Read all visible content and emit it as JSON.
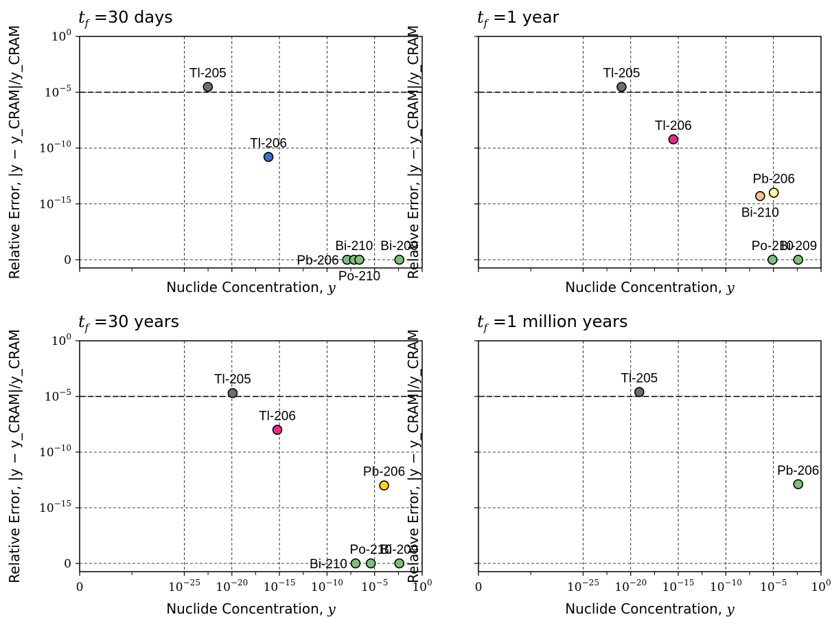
{
  "chart_data": [
    {
      "type": "scatter",
      "title": "t_f =30 days",
      "title_prefix": "t",
      "title_sub": "f",
      "title_text": " =30 days",
      "xlabel": "Nuclide Concentration, y",
      "ylabel": "Relative Error, |y − y_CRAM|/y_CRAM",
      "x_scale": "symlog",
      "xlim": [
        0,
        1
      ],
      "x_ticks": [
        "0",
        "10^-25",
        "10^-20",
        "10^-15",
        "10^-10",
        "10^-5",
        "10^0"
      ],
      "x_ticklabels_shown": false,
      "y_scale": "symlog",
      "y_ticks": [
        "0",
        "10^-15",
        "10^-10",
        "10^-5",
        "10^0"
      ],
      "y_ticklabels_shown": true,
      "threshold": 1e-05,
      "grid": true,
      "points": [
        {
          "label": "Tl-205",
          "x": 3e-23,
          "y": 3e-05,
          "color": "#6e6e6e",
          "label_side": "above"
        },
        {
          "label": "Tl-206",
          "x": 7e-17,
          "y": 1.6e-11,
          "color": "#3a6fc4",
          "label_side": "above"
        },
        {
          "label": "Pb-206",
          "x": 1.3e-08,
          "y": 0,
          "color": "#7fbf7b",
          "label_side": "left"
        },
        {
          "label": "Bi-210",
          "x": 7e-08,
          "y": 0,
          "color": "#7fbf7b",
          "label_side": "above"
        },
        {
          "label": "Po-210",
          "x": 2.5e-07,
          "y": 0,
          "color": "#7fbf7b",
          "label_side": "below"
        },
        {
          "label": "Bi-209",
          "x": 0.004,
          "y": 0,
          "color": "#7fbf7b",
          "label_side": "above"
        }
      ]
    },
    {
      "type": "scatter",
      "title": "t_f =1 year",
      "title_prefix": "t",
      "title_sub": "f",
      "title_text": " =1 year",
      "xlabel": "Nuclide Concentration, y",
      "ylabel": "Relative Error, |y − y_CRAM|/y_CRAM",
      "x_scale": "symlog",
      "xlim": [
        0,
        1
      ],
      "x_ticks": [
        "0",
        "10^-25",
        "10^-20",
        "10^-15",
        "10^-10",
        "10^-5",
        "10^0"
      ],
      "x_ticklabels_shown": false,
      "y_scale": "symlog",
      "y_ticks": [
        "0",
        "10^-15",
        "10^-10",
        "10^-5",
        "10^0"
      ],
      "y_ticklabels_shown": false,
      "threshold": 1e-05,
      "grid": true,
      "points": [
        {
          "label": "Tl-205",
          "x": 1.1e-21,
          "y": 3e-05,
          "color": "#6e6e6e",
          "label_side": "above"
        },
        {
          "label": "Tl-206",
          "x": 3e-16,
          "y": 6e-10,
          "color": "#e7298a",
          "label_side": "above"
        },
        {
          "label": "Bi-210",
          "x": 4e-07,
          "y": 5e-15,
          "color": "#fdc086",
          "label_side": "below"
        },
        {
          "label": "Pb-206",
          "x": 1.1e-05,
          "y": 1e-14,
          "color": "#ffff99",
          "label_side": "above"
        },
        {
          "label": "Po-210",
          "x": 8e-06,
          "y": 0,
          "color": "#7fbf7b",
          "label_side": "above"
        },
        {
          "label": "Bi-209",
          "x": 0.004,
          "y": 0,
          "color": "#7fbf7b",
          "label_side": "above"
        }
      ]
    },
    {
      "type": "scatter",
      "title": "t_f =30 years",
      "title_prefix": "t",
      "title_sub": "f",
      "title_text": " =30 years",
      "xlabel": "Nuclide Concentration, y",
      "ylabel": "Relative Error, |y − y_CRAM|/y_CRAM",
      "x_scale": "symlog",
      "xlim": [
        0,
        1
      ],
      "x_ticks": [
        "0",
        "10^-25",
        "10^-20",
        "10^-15",
        "10^-10",
        "10^-5",
        "10^0"
      ],
      "x_ticklabels_shown": true,
      "y_scale": "symlog",
      "y_ticks": [
        "0",
        "10^-15",
        "10^-10",
        "10^-5",
        "10^0"
      ],
      "y_ticklabels_shown": true,
      "threshold": 1e-05,
      "grid": true,
      "points": [
        {
          "label": "Tl-205",
          "x": 1.2e-20,
          "y": 2e-05,
          "color": "#6e6e6e",
          "label_side": "above"
        },
        {
          "label": "Tl-206",
          "x": 6e-16,
          "y": 1e-08,
          "color": "#e7298a",
          "label_side": "above"
        },
        {
          "label": "Pb-206",
          "x": 0.0001,
          "y": 1e-13,
          "color": "#ffd700",
          "label_side": "above"
        },
        {
          "label": "Bi-210",
          "x": 1e-07,
          "y": 0,
          "color": "#7fbf7b",
          "label_side": "left"
        },
        {
          "label": "Po-210",
          "x": 4e-06,
          "y": 0,
          "color": "#7fbf7b",
          "label_side": "above"
        },
        {
          "label": "Bi-209",
          "x": 0.004,
          "y": 0,
          "color": "#7fbf7b",
          "label_side": "above"
        }
      ]
    },
    {
      "type": "scatter",
      "title": "t_f =1 million years",
      "title_prefix": "t",
      "title_sub": "f",
      "title_text": " =1 million years",
      "xlabel": "Nuclide Concentration, y",
      "ylabel": "Relative Error, |y − y_CRAM|/y_CRAM",
      "x_scale": "symlog",
      "xlim": [
        0,
        1
      ],
      "x_ticks": [
        "0",
        "10^-25",
        "10^-20",
        "10^-15",
        "10^-10",
        "10^-5",
        "10^0"
      ],
      "x_ticklabels_shown": true,
      "y_scale": "symlog",
      "y_ticks": [
        "0",
        "10^-15",
        "10^-10",
        "10^-5",
        "10^0"
      ],
      "y_ticklabels_shown": false,
      "threshold": 1e-05,
      "grid": true,
      "points": [
        {
          "label": "Tl-205",
          "x": 8e-20,
          "y": 2.5e-05,
          "color": "#6e6e6e",
          "label_side": "above"
        },
        {
          "label": "Pb-206",
          "x": 0.004,
          "y": 1.3e-13,
          "color": "#7fbf7b",
          "label_side": "above"
        }
      ]
    }
  ]
}
